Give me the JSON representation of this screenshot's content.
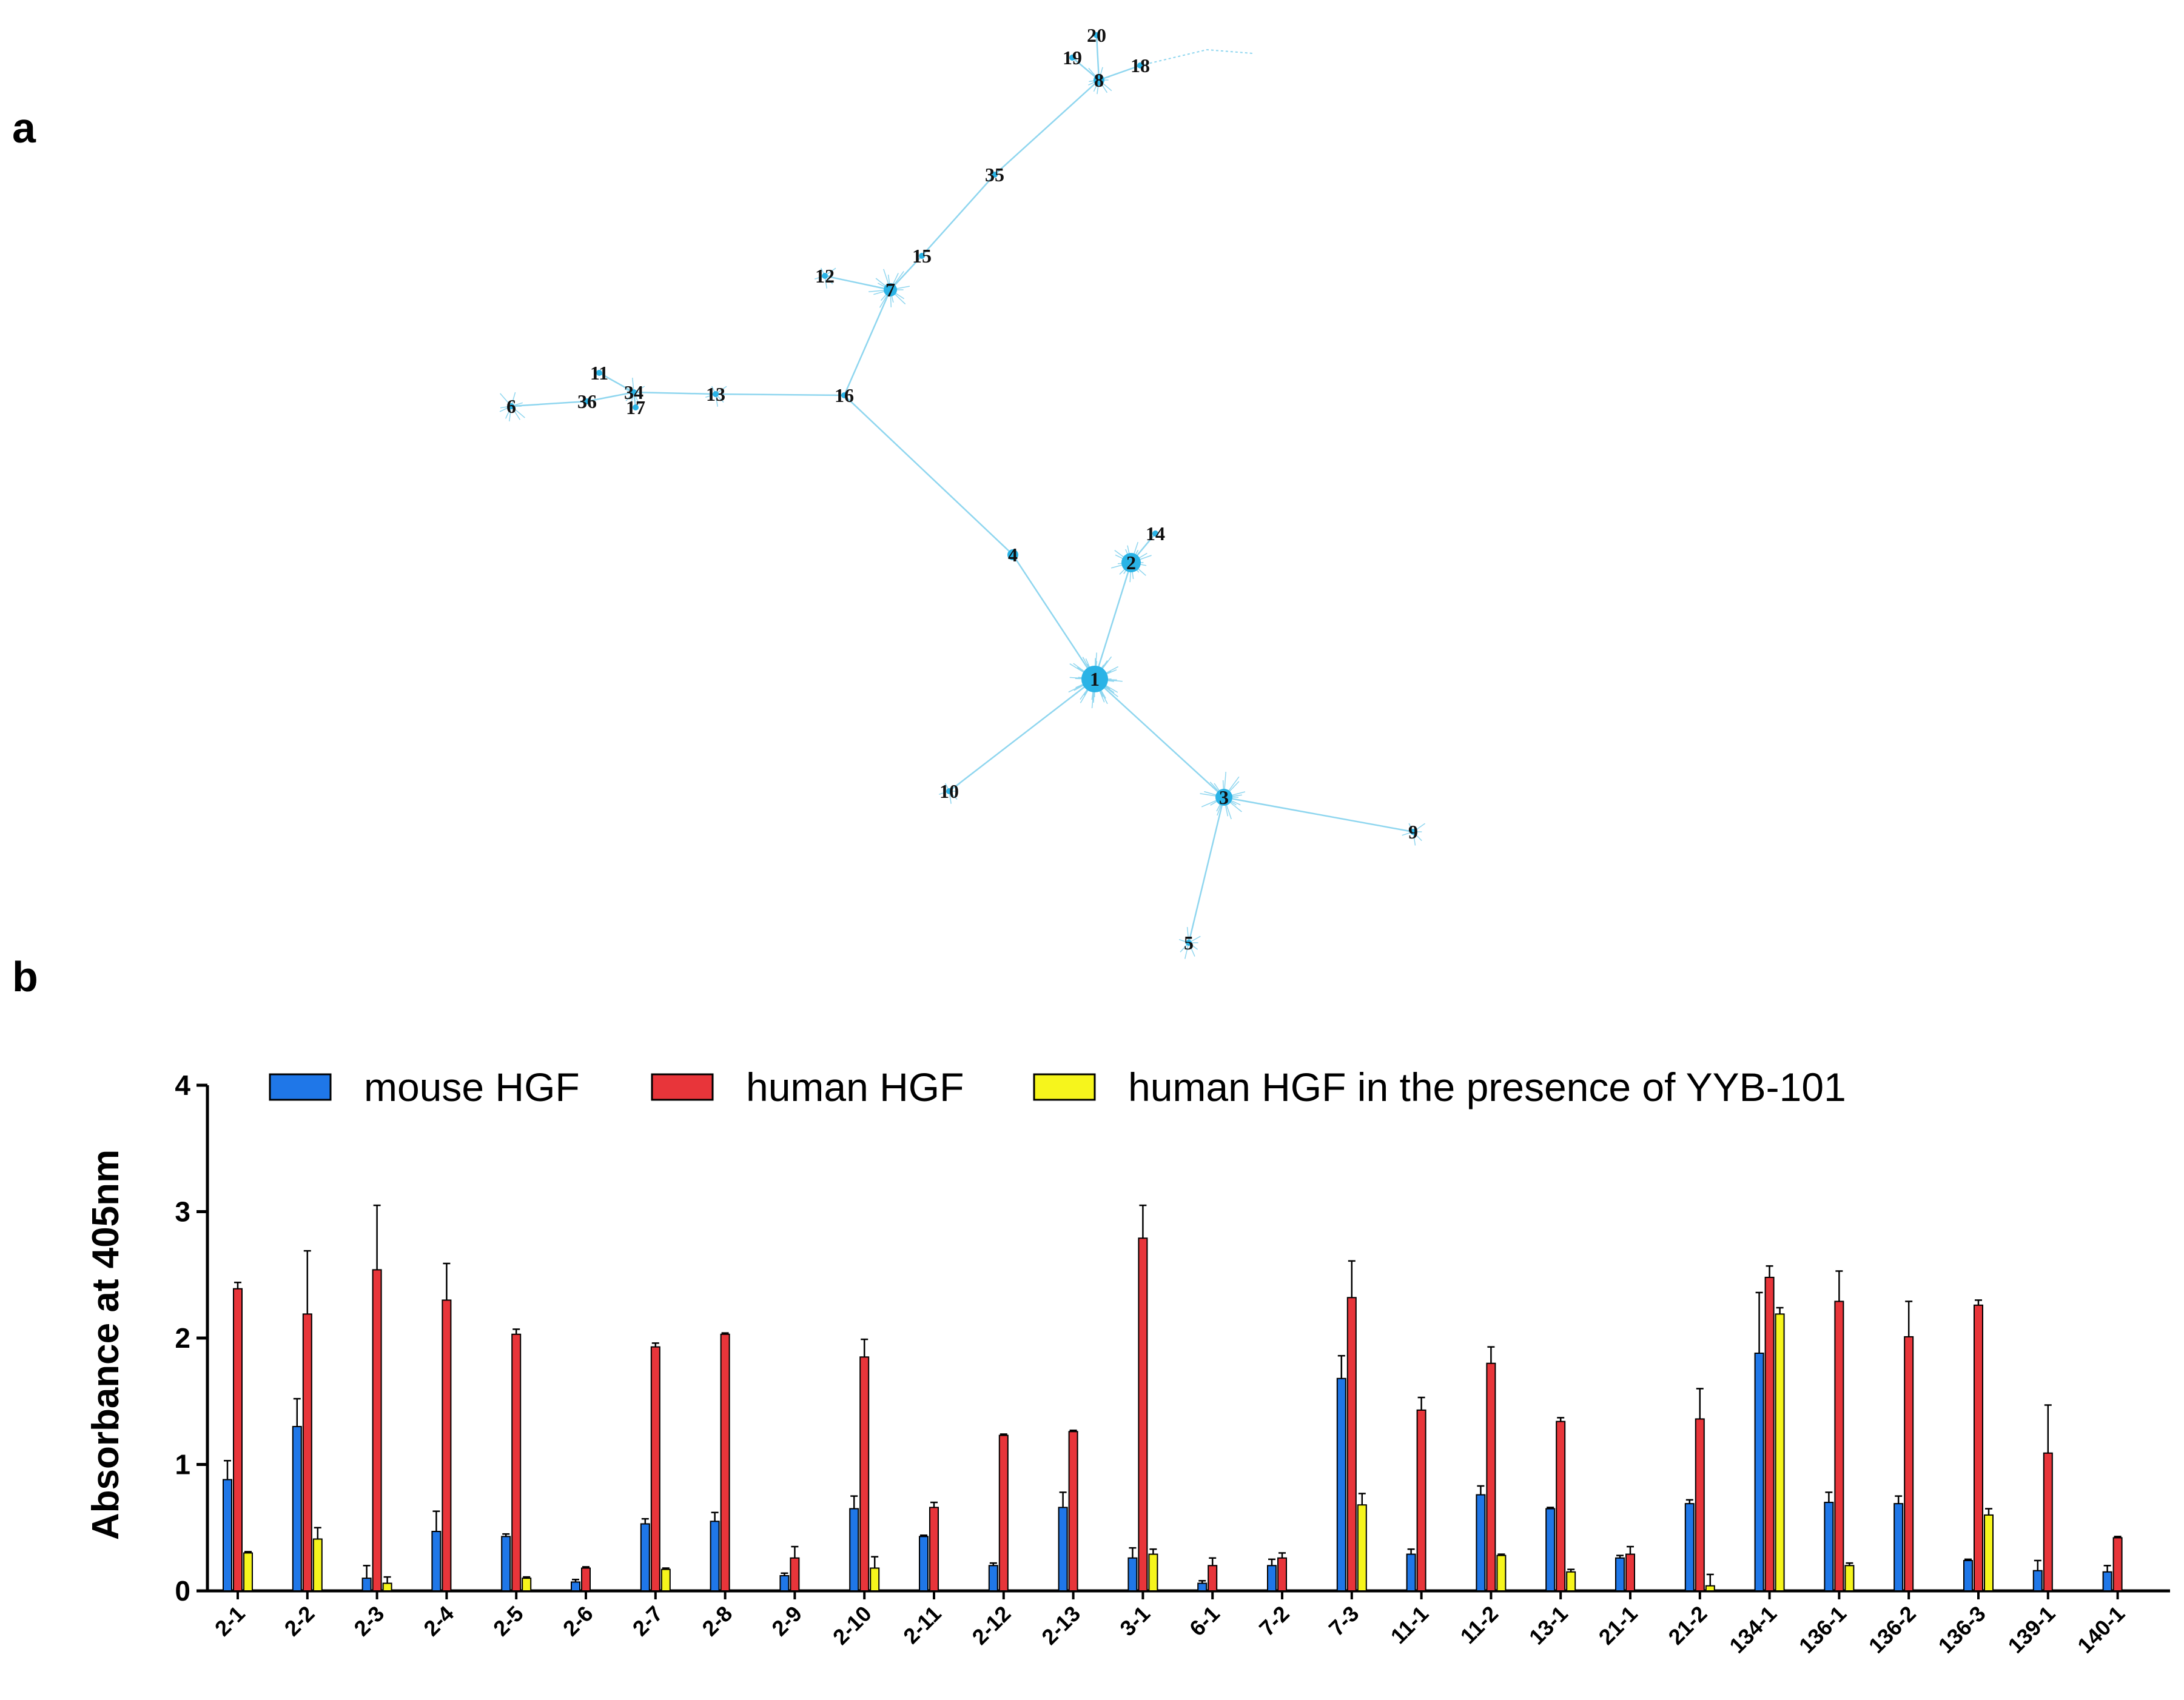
{
  "panels": {
    "a": "a",
    "b": "b"
  },
  "network": {
    "edge_color": "#8fd6ef",
    "node_color": "#2ab3e6",
    "nodes": [
      {
        "id": "1",
        "label": "1"
      },
      {
        "id": "2",
        "label": "2"
      },
      {
        "id": "3",
        "label": "3"
      },
      {
        "id": "4",
        "label": "4"
      },
      {
        "id": "5",
        "label": "5"
      },
      {
        "id": "6",
        "label": "6"
      },
      {
        "id": "7",
        "label": "7"
      },
      {
        "id": "8",
        "label": "8"
      },
      {
        "id": "9",
        "label": "9"
      },
      {
        "id": "10",
        "label": "10"
      },
      {
        "id": "11",
        "label": "11"
      },
      {
        "id": "12",
        "label": "12"
      },
      {
        "id": "13",
        "label": "13"
      },
      {
        "id": "14",
        "label": "14"
      },
      {
        "id": "15",
        "label": "15"
      },
      {
        "id": "16",
        "label": "16"
      },
      {
        "id": "17",
        "label": "17"
      },
      {
        "id": "18",
        "label": "18"
      },
      {
        "id": "19",
        "label": "19"
      },
      {
        "id": "20",
        "label": "20"
      },
      {
        "id": "34",
        "label": "34"
      },
      {
        "id": "35",
        "label": "35"
      },
      {
        "id": "36",
        "label": "36"
      }
    ],
    "edges": [
      [
        "1",
        "3"
      ],
      [
        "1",
        "10"
      ],
      [
        "1",
        "4"
      ],
      [
        "1",
        "2"
      ],
      [
        "3",
        "9"
      ],
      [
        "3",
        "5"
      ],
      [
        "4",
        "16"
      ],
      [
        "16",
        "13"
      ],
      [
        "13",
        "34"
      ],
      [
        "34",
        "11"
      ],
      [
        "34",
        "17"
      ],
      [
        "34",
        "36"
      ],
      [
        "36",
        "6"
      ],
      [
        "16",
        "7"
      ],
      [
        "7",
        "12"
      ],
      [
        "7",
        "15"
      ],
      [
        "15",
        "35"
      ],
      [
        "35",
        "8"
      ],
      [
        "8",
        "18"
      ],
      [
        "8",
        "19"
      ],
      [
        "8",
        "20"
      ],
      [
        "2",
        "14"
      ]
    ]
  },
  "chart_data": {
    "type": "bar",
    "title": "",
    "xlabel": "",
    "ylabel": "Absorbance at 405nm",
    "ylim": [
      0,
      4
    ],
    "yticks": [
      "0",
      "1",
      "2",
      "3",
      "4"
    ],
    "categories": [
      "2-1",
      "2-2",
      "2-3",
      "2-4",
      "2-5",
      "2-6",
      "2-7",
      "2-8",
      "2-9",
      "2-10",
      "2-11",
      "2-12",
      "2-13",
      "3-1",
      "6-1",
      "7-2",
      "7-3",
      "11-1",
      "11-2",
      "13-1",
      "21-1",
      "21-2",
      "134-1",
      "136-1",
      "136-2",
      "136-3",
      "139-1",
      "140-1"
    ],
    "series": [
      {
        "name": "mouse HGF",
        "color": "#1f77e8",
        "values": [
          0.88,
          1.3,
          0.1,
          0.47,
          0.43,
          0.07,
          0.53,
          0.55,
          0.12,
          0.65,
          0.43,
          0.2,
          0.66,
          0.26,
          0.06,
          0.2,
          1.68,
          0.29,
          0.76,
          0.65,
          0.26,
          0.69,
          1.88,
          0.7,
          0.69,
          0.24,
          0.16,
          0.15
        ],
        "errors": [
          0.15,
          0.22,
          0.1,
          0.16,
          0.02,
          0.02,
          0.04,
          0.07,
          0.02,
          0.1,
          0.01,
          0.02,
          0.12,
          0.08,
          0.02,
          0.05,
          0.18,
          0.04,
          0.07,
          0.01,
          0.02,
          0.03,
          0.48,
          0.08,
          0.06,
          0.01,
          0.08,
          0.05
        ]
      },
      {
        "name": "human HGF",
        "color": "#e8353a",
        "values": [
          2.39,
          2.19,
          2.54,
          2.3,
          2.03,
          0.18,
          1.93,
          2.03,
          0.26,
          1.85,
          0.66,
          1.23,
          1.26,
          2.79,
          0.2,
          0.26,
          2.32,
          1.43,
          1.8,
          1.34,
          0.29,
          1.36,
          2.48,
          2.29,
          2.01,
          2.26,
          1.09,
          0.42
        ],
        "errors": [
          0.05,
          0.5,
          0.51,
          0.29,
          0.04,
          0.01,
          0.03,
          0.01,
          0.09,
          0.14,
          0.04,
          0.01,
          0.01,
          0.26,
          0.06,
          0.04,
          0.29,
          0.1,
          0.13,
          0.03,
          0.06,
          0.24,
          0.09,
          0.24,
          0.28,
          0.04,
          0.38,
          0.01
        ]
      },
      {
        "name": "human HGF in the presence of YYB-101",
        "color": "#f6f51c",
        "values": [
          0.3,
          0.41,
          0.06,
          null,
          0.1,
          null,
          0.17,
          null,
          null,
          0.18,
          null,
          null,
          null,
          0.29,
          null,
          null,
          0.68,
          null,
          0.28,
          0.15,
          null,
          0.04,
          2.19,
          0.2,
          null,
          0.6,
          null,
          null
        ],
        "errors": [
          0.01,
          0.09,
          0.05,
          null,
          0.01,
          null,
          0.01,
          null,
          null,
          0.09,
          null,
          null,
          null,
          0.04,
          null,
          null,
          0.09,
          null,
          0.01,
          0.02,
          null,
          0.09,
          0.05,
          0.02,
          null,
          0.05,
          null,
          null
        ]
      }
    ],
    "legend": {
      "position": "top",
      "entries": [
        "mouse HGF",
        "human HGF",
        "human HGF in the presence of YYB-101"
      ]
    }
  }
}
